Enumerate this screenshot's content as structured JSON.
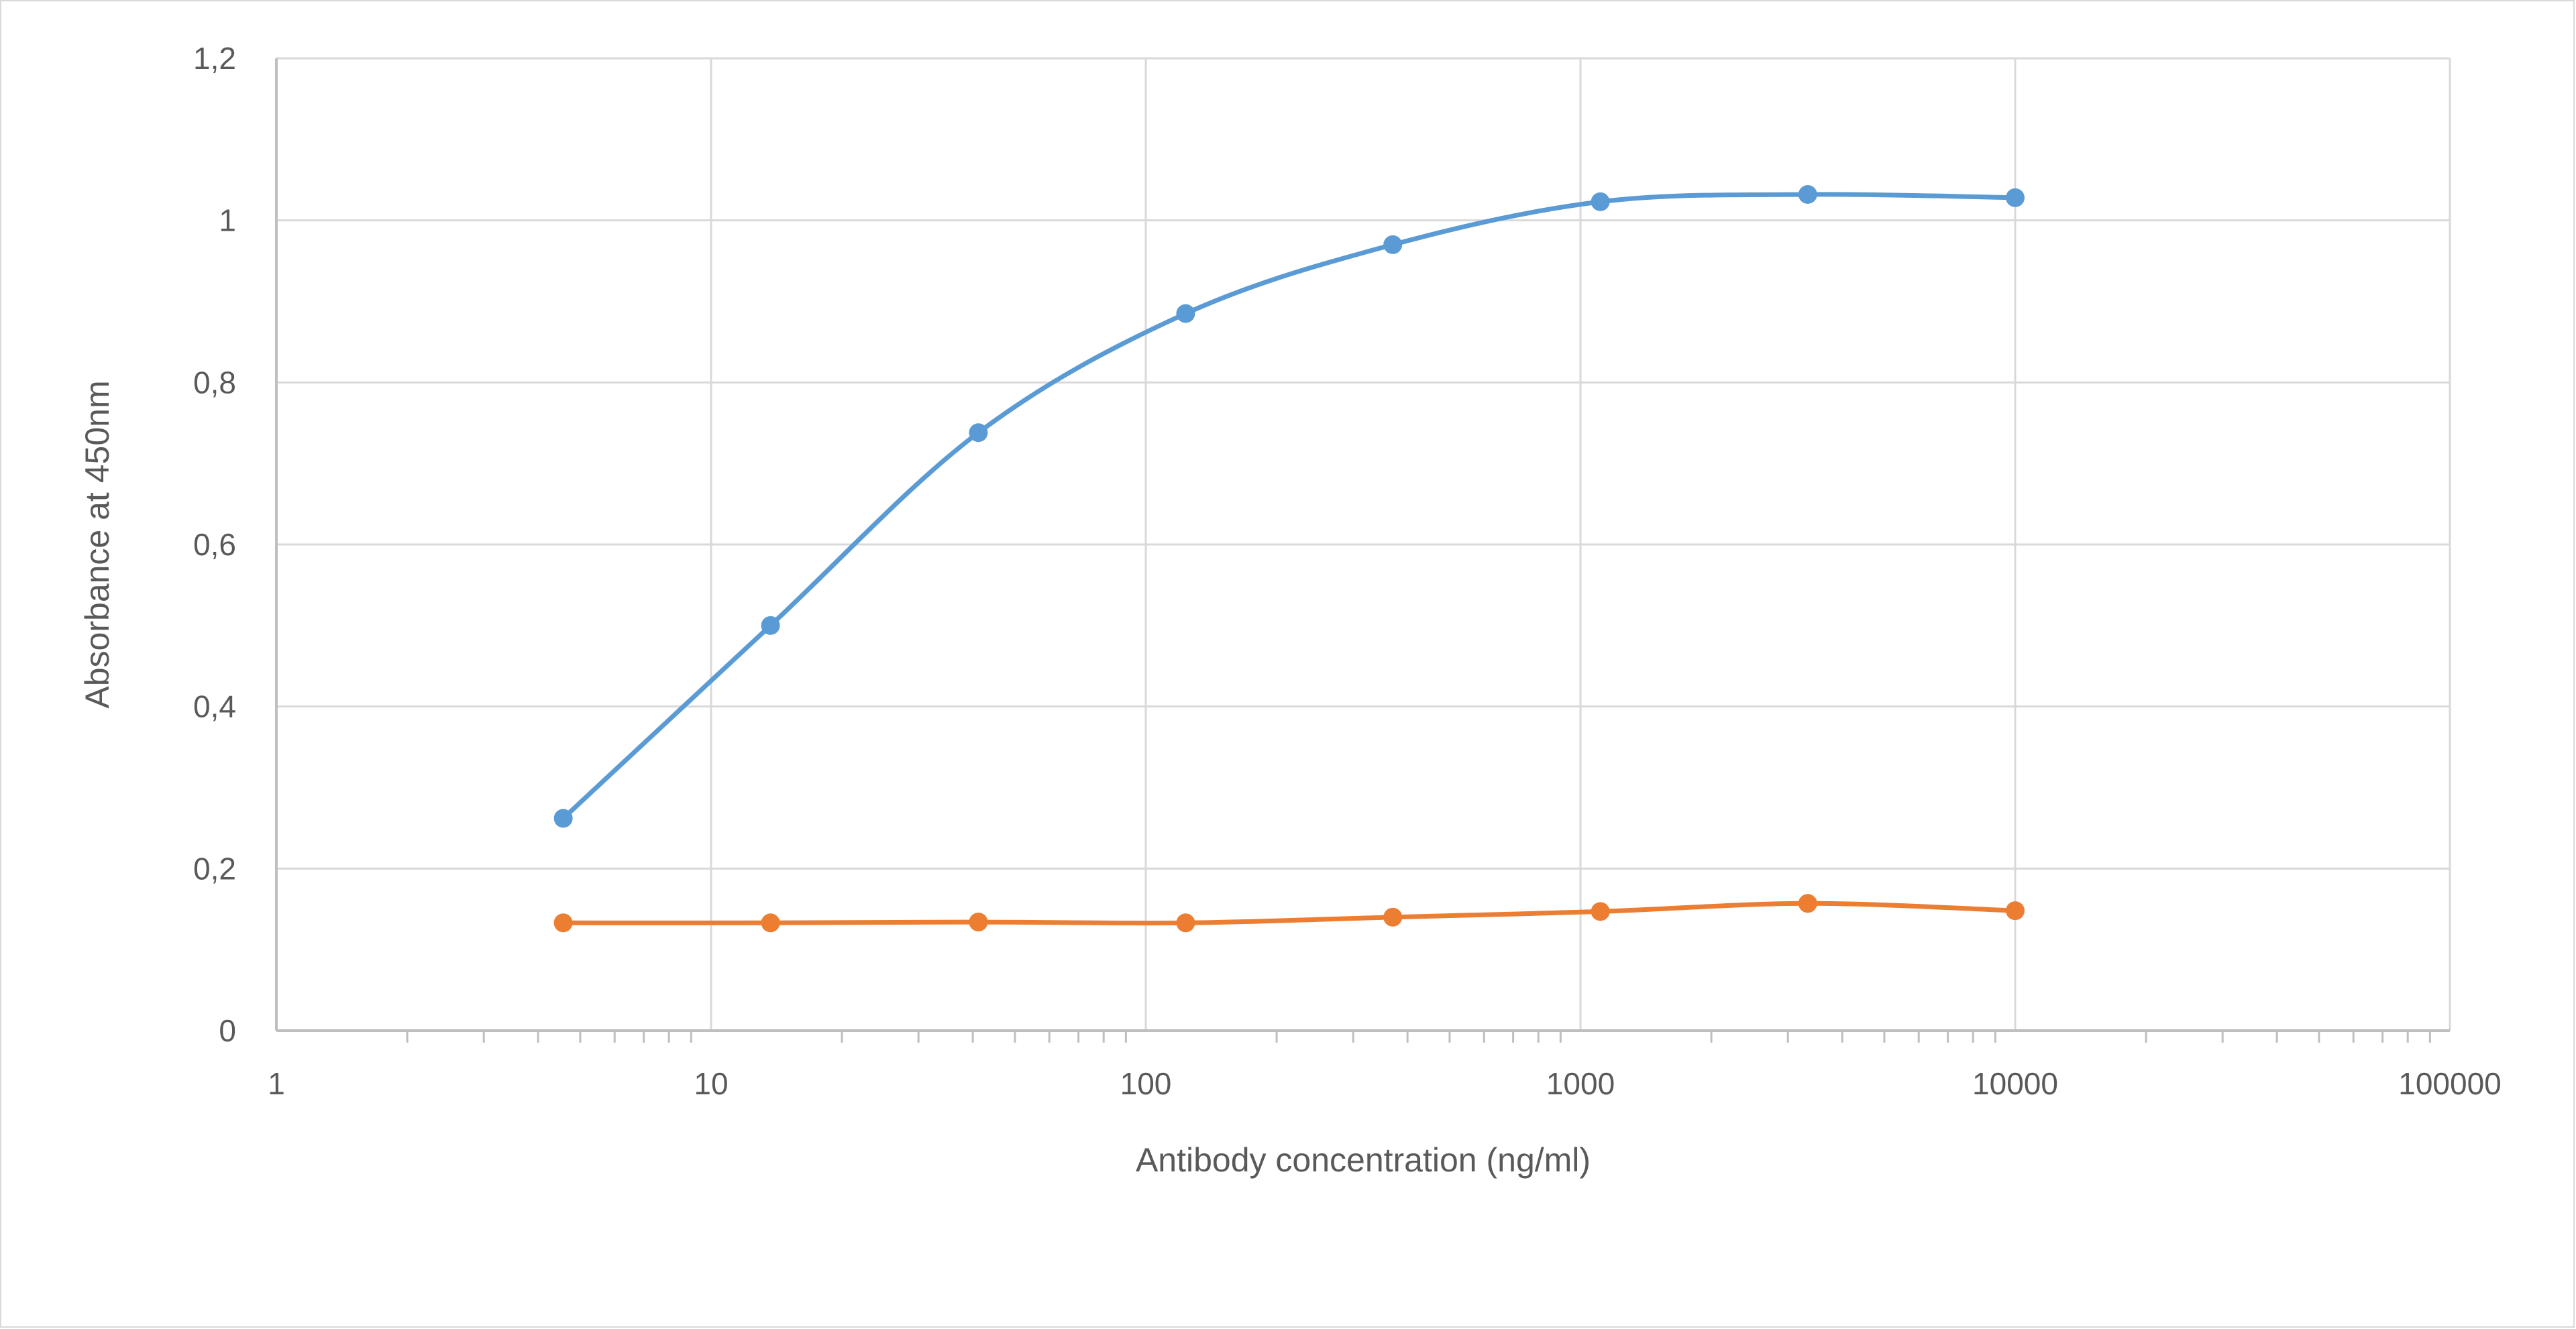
{
  "chart_data": {
    "type": "line",
    "title": "",
    "xlabel": "Antibody concentration (ng/ml)",
    "ylabel": "Absorbance at 450nm",
    "x_scale": "log",
    "xlim": [
      1,
      100000
    ],
    "ylim": [
      0,
      1.2
    ],
    "x_ticks": [
      1,
      10,
      100,
      1000,
      10000,
      100000
    ],
    "x_tick_labels": [
      "1",
      "10",
      "100",
      "1000",
      "10000",
      "100000"
    ],
    "y_ticks": [
      0,
      0.2,
      0.4,
      0.6,
      0.8,
      1,
      1.2
    ],
    "y_tick_labels": [
      "0",
      "0,2",
      "0,4",
      "0,6",
      "0,8",
      "1",
      "1,2"
    ],
    "grid": true,
    "legend": "none",
    "x": [
      4.57,
      13.7,
      41.2,
      123.5,
      370,
      1111,
      3333,
      10000
    ],
    "series": [
      {
        "color": "#5b9bd5",
        "values": [
          0.262,
          0.5,
          0.738,
          0.885,
          0.97,
          1.023,
          1.032,
          1.028
        ]
      },
      {
        "color": "#ed7d31",
        "values": [
          0.133,
          0.133,
          0.134,
          0.133,
          0.14,
          0.147,
          0.157,
          0.148
        ]
      }
    ]
  }
}
